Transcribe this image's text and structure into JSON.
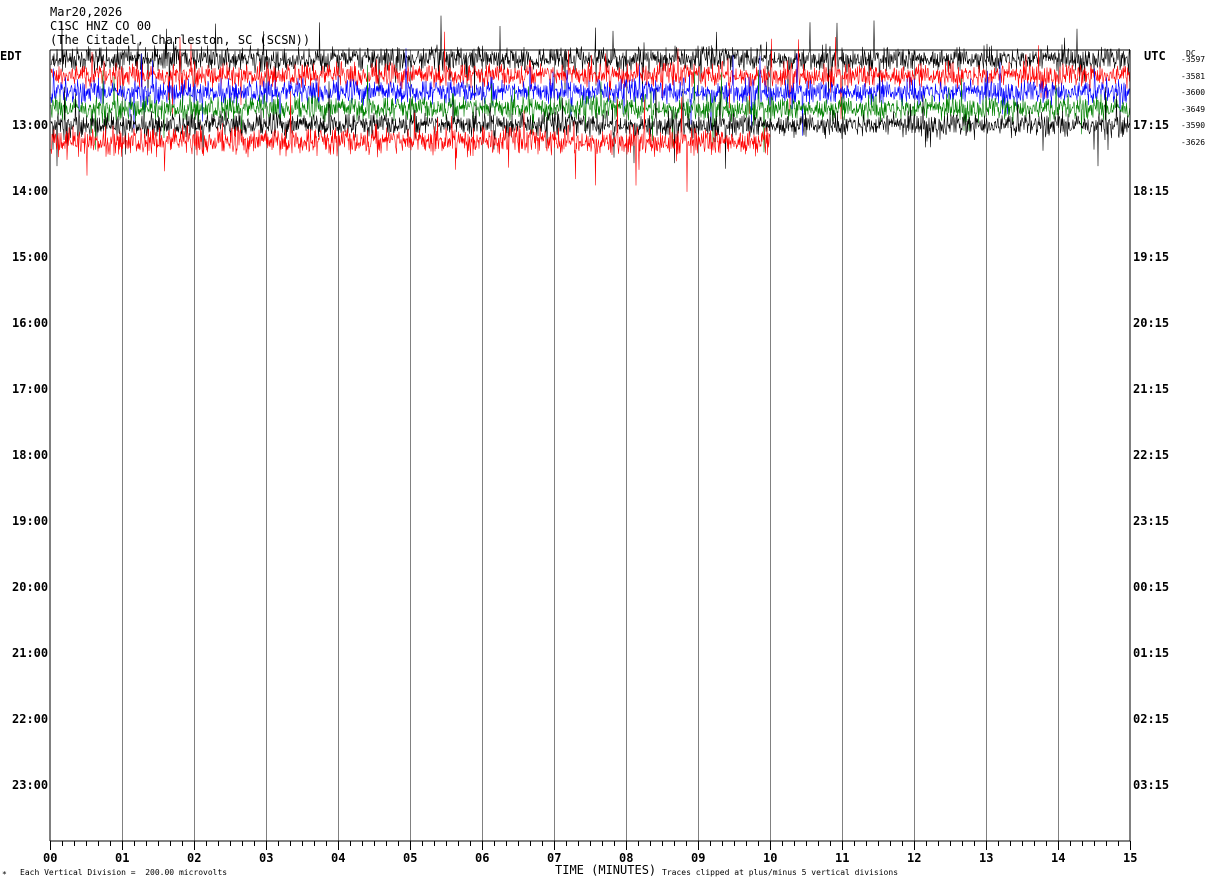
{
  "header": {
    "date": "Mar20,2026",
    "channel": "C1SC HNZ CO 00",
    "station": "(The Citadel, Charleston, SC (SCSN))"
  },
  "left_timezone": "EDT",
  "right_timezone": "UTC",
  "dc_label": "DC",
  "footer": {
    "scale_note": "Each Vertical Division =  200.00 microvolts",
    "clip_note": "Traces clipped at plus/minus 5 vertical divisions",
    "corner_mark": "*"
  },
  "chart_data": {
    "type": "line",
    "title": "",
    "xlabel": "TIME (MINUTES)",
    "xlim": [
      0,
      15
    ],
    "x_ticks": [
      "00",
      "01",
      "02",
      "03",
      "04",
      "05",
      "06",
      "07",
      "08",
      "09",
      "10",
      "11",
      "12",
      "13",
      "14",
      "15"
    ],
    "left_row_labels": [
      "13:00",
      "14:00",
      "15:00",
      "16:00",
      "17:00",
      "18:00",
      "19:00",
      "20:00",
      "21:00",
      "22:00",
      "23:00"
    ],
    "right_row_labels": [
      "17:15",
      "18:15",
      "19:15",
      "20:15",
      "21:15",
      "22:15",
      "23:15",
      "00:15",
      "01:15",
      "02:15",
      "03:15"
    ],
    "rows_per_hour": 4,
    "total_rows": 48,
    "colors": [
      "#000000",
      "#ff0000",
      "#0000ff",
      "#008000"
    ],
    "traces": [
      {
        "row": 0,
        "color": "#000000",
        "end_minute": 15,
        "dc_offset": "-3597"
      },
      {
        "row": 1,
        "color": "#ff0000",
        "end_minute": 15,
        "dc_offset": "-3581"
      },
      {
        "row": 2,
        "color": "#0000ff",
        "end_minute": 15,
        "dc_offset": "-3600"
      },
      {
        "row": 3,
        "color": "#008000",
        "end_minute": 15,
        "dc_offset": "-3649"
      },
      {
        "row": 4,
        "color": "#000000",
        "end_minute": 15,
        "dc_offset": "-3590"
      },
      {
        "row": 5,
        "color": "#ff0000",
        "end_minute": 10,
        "dc_offset": "-3626"
      }
    ]
  }
}
